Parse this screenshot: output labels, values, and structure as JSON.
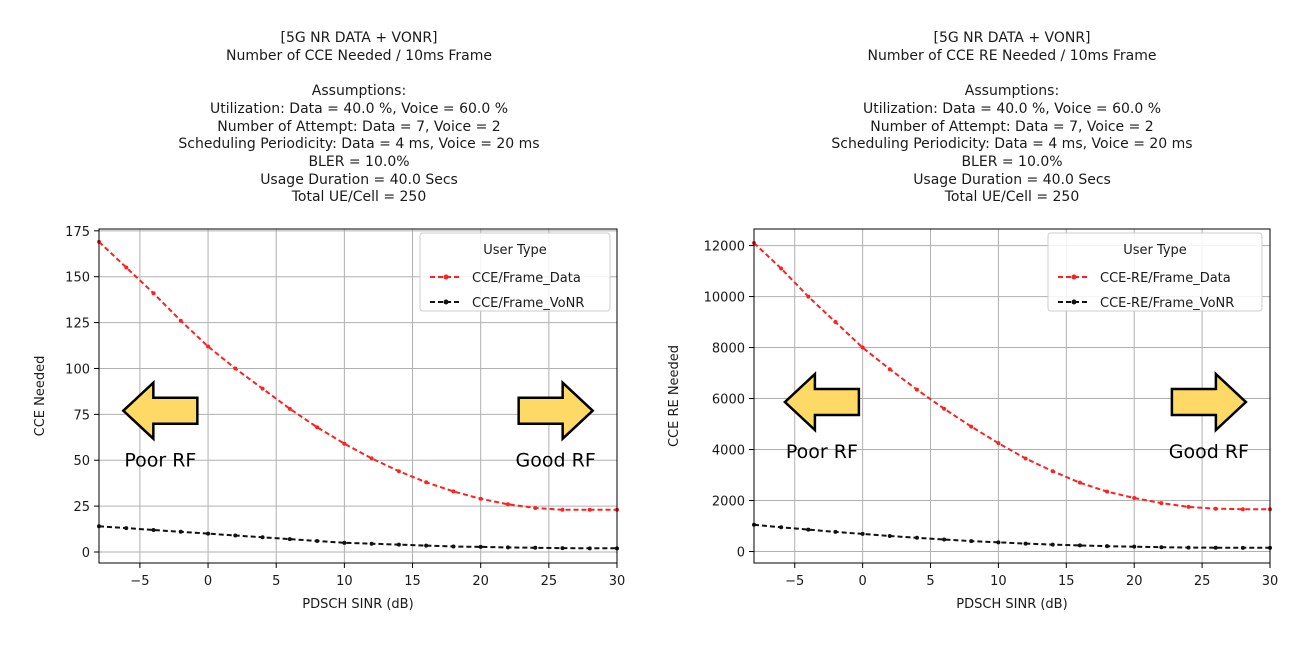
{
  "chart_data": [
    {
      "type": "line",
      "title": "[5G NR DATA + VONR]",
      "subtitle": "Number of CCE Needed / 10ms Frame",
      "assumptions_heading": "Assumptions:",
      "assumptions": [
        "Utilization: Data = 40.0 %, Voice = 60.0 %",
        "Number of Attempt: Data = 7, Voice = 2",
        "Scheduling Periodicity: Data = 4 ms, Voice = 20 ms",
        "BLER = 10.0%",
        "Usage Duration = 40.0 Secs",
        "Total UE/Cell = 250"
      ],
      "xlabel": "PDSCH SINR (dB)",
      "ylabel": "CCE Needed",
      "xlim": [
        -8,
        30
      ],
      "ylim": [
        -6,
        176
      ],
      "xticks": [
        -5,
        0,
        5,
        10,
        15,
        20,
        25,
        30
      ],
      "yticks": [
        0,
        25,
        50,
        75,
        100,
        125,
        150,
        175
      ],
      "xtick_labels": [
        "−5",
        "0",
        "5",
        "10",
        "15",
        "20",
        "25",
        "30"
      ],
      "ytick_labels": [
        "0",
        "25",
        "50",
        "75",
        "100",
        "125",
        "150",
        "175"
      ],
      "grid": true,
      "legend_title": "User Type",
      "legend_position": "top-right",
      "x": [
        -8,
        -6,
        -4,
        -2,
        0,
        2,
        4,
        6,
        8,
        10,
        12,
        14,
        16,
        18,
        20,
        22,
        24,
        26,
        28,
        30
      ],
      "series": [
        {
          "name": "CCE/Frame_Data",
          "color": "#ff2020",
          "values": [
            169,
            155,
            141,
            126,
            112,
            100,
            89,
            78,
            68,
            59,
            51,
            44,
            38,
            33,
            29,
            26,
            24,
            23,
            23,
            23
          ]
        },
        {
          "name": "CCE/Frame_VoNR",
          "color": "#111111",
          "values": [
            14,
            13,
            12,
            11,
            10,
            9,
            8,
            7,
            6,
            5,
            4.5,
            4,
            3.5,
            3,
            2.8,
            2.5,
            2.3,
            2.1,
            2.0,
            2.0
          ]
        }
      ],
      "annotations": [
        {
          "text": "Poor RF",
          "direction": "left",
          "x": -3.5,
          "y": 65
        },
        {
          "text": "Good RF",
          "direction": "right",
          "x": 25.5,
          "y": 65
        }
      ]
    },
    {
      "type": "line",
      "title": "[5G NR DATA + VONR]",
      "subtitle": "Number of CCE RE Needed / 10ms Frame",
      "assumptions_heading": "Assumptions:",
      "assumptions": [
        "Utilization: Data = 40.0 %, Voice = 60.0 %",
        "Number of Attempt: Data = 7, Voice = 2",
        "Scheduling Periodicity: Data = 4 ms, Voice = 20 ms",
        "BLER = 10.0%",
        "Usage Duration = 40.0 Secs",
        "Total UE/Cell = 250"
      ],
      "xlabel": "PDSCH SINR (dB)",
      "ylabel": "CCE RE Needed",
      "xlim": [
        -8,
        30
      ],
      "ylim": [
        -450,
        12650
      ],
      "xticks": [
        -5,
        0,
        5,
        10,
        15,
        20,
        25,
        30
      ],
      "yticks": [
        0,
        2000,
        4000,
        6000,
        8000,
        10000,
        12000
      ],
      "xtick_labels": [
        "−5",
        "0",
        "5",
        "10",
        "15",
        "20",
        "25",
        "30"
      ],
      "ytick_labels": [
        "0",
        "2000",
        "4000",
        "6000",
        "8000",
        "10000",
        "12000"
      ],
      "grid": true,
      "legend_title": "User Type",
      "legend_position": "top-right",
      "x": [
        -8,
        -6,
        -4,
        -2,
        0,
        2,
        4,
        6,
        8,
        10,
        12,
        14,
        16,
        18,
        20,
        22,
        24,
        26,
        28,
        30
      ],
      "series": [
        {
          "name": "CCE-RE/Frame_Data",
          "color": "#ff2020",
          "values": [
            12100,
            11100,
            10000,
            9000,
            8000,
            7150,
            6350,
            5600,
            4900,
            4250,
            3650,
            3150,
            2700,
            2350,
            2100,
            1900,
            1750,
            1680,
            1660,
            1660
          ]
        },
        {
          "name": "CCE-RE/Frame_VoNR",
          "color": "#111111",
          "values": [
            1050,
            950,
            860,
            770,
            690,
            610,
            540,
            470,
            410,
            360,
            310,
            270,
            240,
            210,
            190,
            170,
            155,
            150,
            145,
            145
          ]
        }
      ],
      "annotations": [
        {
          "text": "Poor RF",
          "direction": "left",
          "x": -3.0,
          "y": 5000
        },
        {
          "text": "Good RF",
          "direction": "right",
          "x": 25.5,
          "y": 5000
        }
      ]
    }
  ]
}
